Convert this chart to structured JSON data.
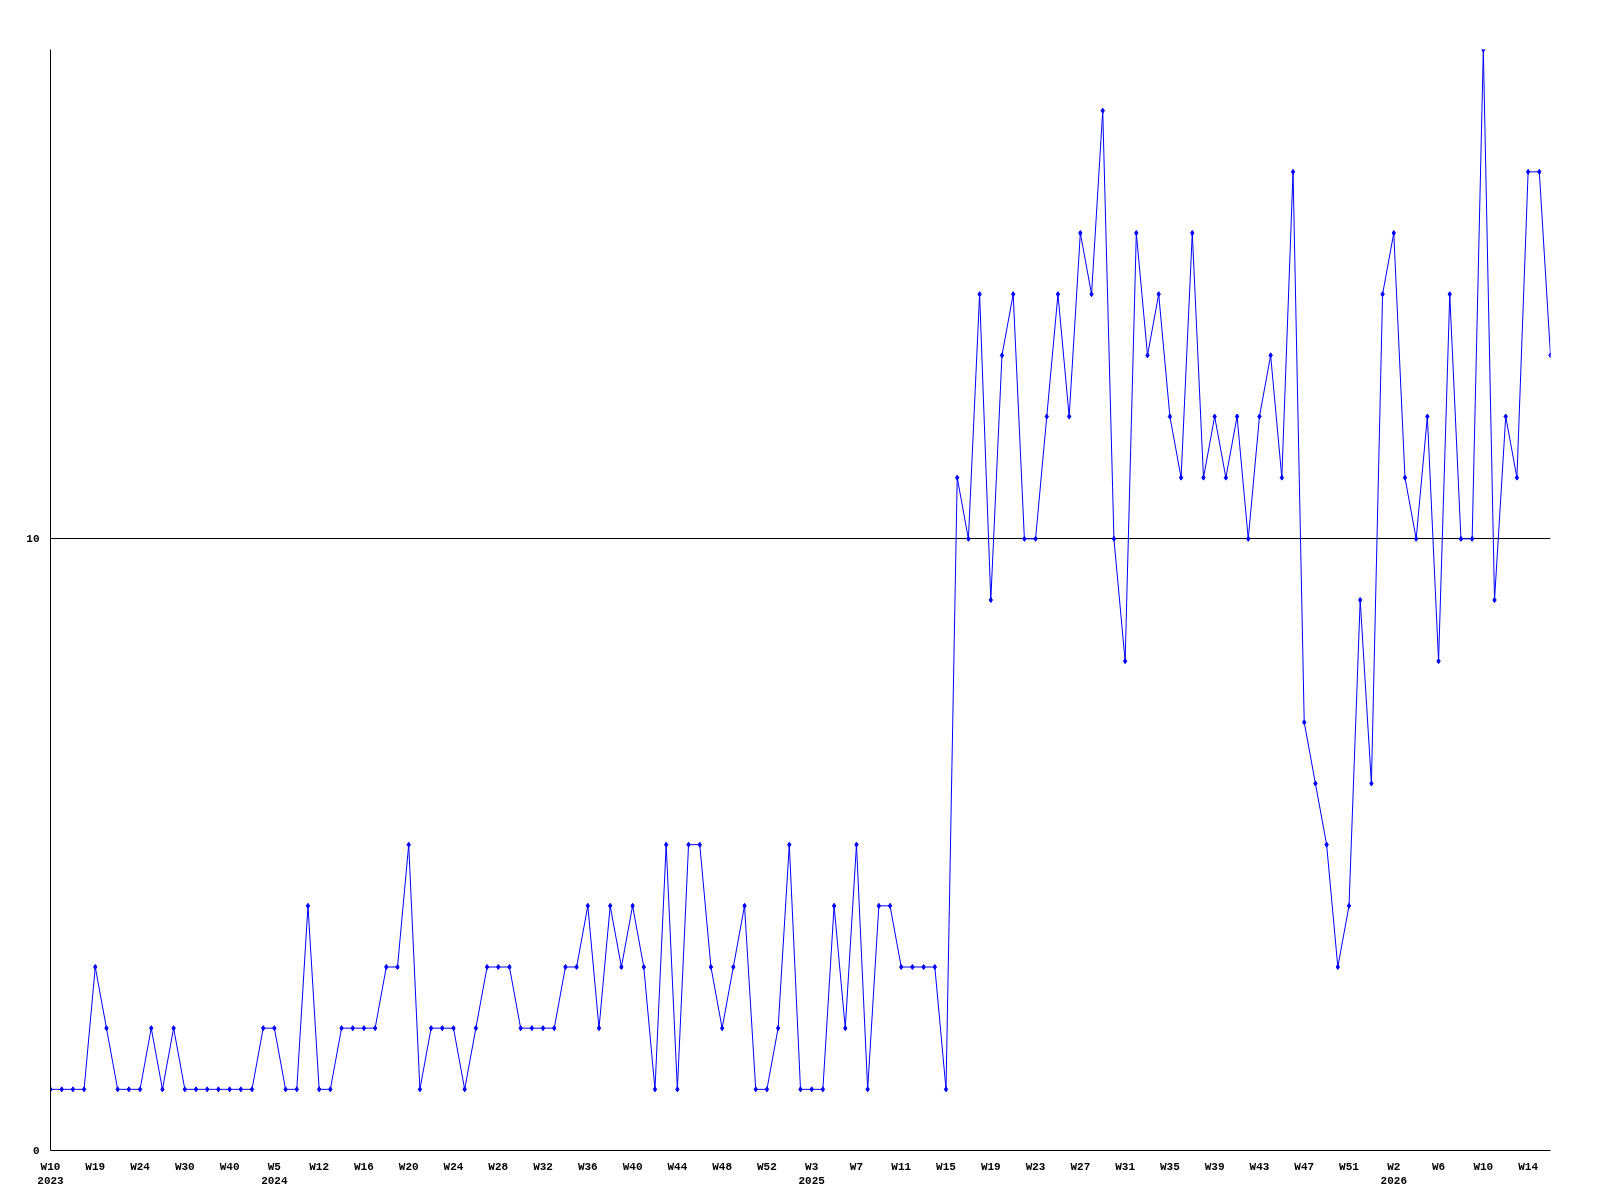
{
  "chart_data": {
    "type": "line",
    "categories": [
      "W10\n2023",
      null,
      null,
      null,
      "W19",
      null,
      null,
      null,
      "W24",
      null,
      null,
      null,
      "W30",
      null,
      null,
      null,
      "W40",
      null,
      null,
      null,
      "W5\n2024",
      null,
      null,
      null,
      "W12",
      null,
      null,
      null,
      "W16",
      null,
      null,
      null,
      "W20",
      null,
      null,
      null,
      "W24",
      null,
      null,
      null,
      "W28",
      null,
      null,
      null,
      "W32",
      null,
      null,
      null,
      "W36",
      null,
      null,
      null,
      "W40",
      null,
      null,
      null,
      "W44",
      null,
      null,
      null,
      "W48",
      null,
      null,
      null,
      "W52",
      null,
      null,
      null,
      "W3\n2025",
      null,
      null,
      null,
      "W7",
      null,
      null,
      null,
      "W11",
      null,
      null,
      null,
      "W15",
      null,
      null,
      null,
      "W19",
      null,
      null,
      null,
      "W23",
      null,
      null,
      null,
      "W27",
      null,
      null,
      null,
      "W31",
      null,
      null,
      null,
      "W35",
      null,
      null,
      null,
      "W39",
      null,
      null,
      null,
      "W43",
      null,
      null,
      null,
      "W47",
      null,
      null,
      null,
      "W51",
      null,
      null,
      null,
      "W2\n2026",
      null,
      null,
      null,
      "W6",
      null,
      null,
      null,
      "W10",
      null,
      null,
      null,
      "W14",
      null,
      null
    ],
    "series": [
      {
        "color": "#0000ff",
        "values": [
          1,
          1,
          1,
          1,
          3,
          2,
          1,
          1,
          1,
          2,
          1,
          2,
          1,
          1,
          1,
          1,
          1,
          1,
          1,
          2,
          2,
          1,
          1,
          4,
          1,
          1,
          2,
          2,
          2,
          2,
          3,
          3,
          5,
          1,
          2,
          2,
          2,
          1,
          2,
          3,
          3,
          3,
          2,
          2,
          2,
          2,
          3,
          3,
          4,
          2,
          4,
          3,
          4,
          3,
          1,
          5,
          1,
          5,
          5,
          3,
          2,
          3,
          4,
          1,
          1,
          2,
          5,
          1,
          1,
          1,
          4,
          2,
          5,
          1,
          4,
          4,
          3,
          3,
          3,
          3,
          1,
          11,
          10,
          14,
          9,
          13,
          14,
          10,
          10,
          12,
          14,
          12,
          15,
          14,
          17,
          10,
          8,
          15,
          13,
          14,
          12,
          11,
          15,
          11,
          12,
          11,
          12,
          10,
          12,
          13,
          11,
          16,
          7,
          6,
          5,
          3,
          4,
          9,
          6,
          14,
          15,
          11,
          10,
          12,
          8,
          14,
          10,
          10,
          18,
          9,
          12,
          11,
          16,
          16,
          13
        ]
      }
    ],
    "ylim": [
      0,
      18
    ],
    "yticks": [
      0,
      10
    ],
    "grid": "y",
    "marker": "diamond",
    "line_style": "solid"
  }
}
